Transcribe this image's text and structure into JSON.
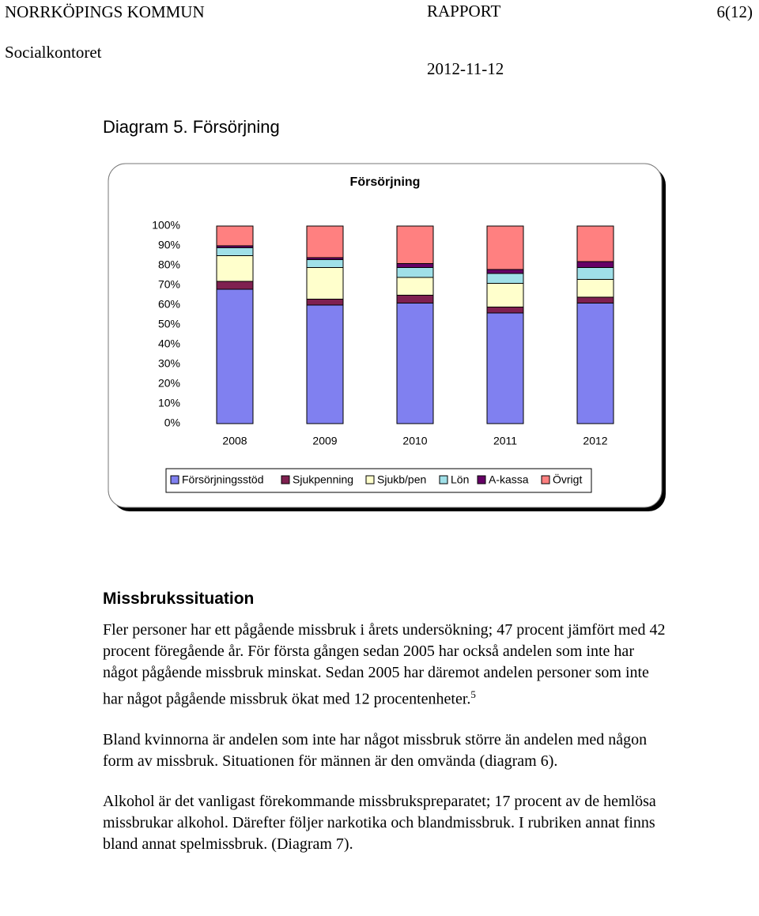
{
  "header": {
    "organization": "NORRKÖPINGS KOMMUN",
    "report": "RAPPORT",
    "page": "6(12)",
    "department": "Socialkontoret",
    "date": "2012-11-12"
  },
  "caption": "Diagram 5. Försörjning",
  "chart_data": {
    "type": "stacked_bar",
    "title": "Försörjning",
    "categories": [
      "2008",
      "2009",
      "2010",
      "2011",
      "2012"
    ],
    "series": [
      {
        "name": "Försörjningsstöd",
        "color": "#8080f0",
        "values": [
          68,
          60,
          61,
          56,
          61
        ]
      },
      {
        "name": "Sjukpenning",
        "color": "#7f2050",
        "values": [
          4,
          3,
          4,
          3,
          3
        ]
      },
      {
        "name": "Sjukb/pen",
        "color": "#ffffcc",
        "values": [
          13,
          16,
          9,
          12,
          9
        ]
      },
      {
        "name": "Lön",
        "color": "#a0e0e8",
        "values": [
          4,
          4,
          5,
          5,
          6
        ]
      },
      {
        "name": "A-kassa",
        "color": "#660066",
        "values": [
          1,
          1,
          2,
          2,
          3
        ]
      },
      {
        "name": "Övrigt",
        "color": "#ff8080",
        "values": [
          10,
          16,
          19,
          22,
          18
        ]
      }
    ],
    "ylim": [
      0,
      100
    ],
    "yticks": [
      {
        "value": 0,
        "label": "0%"
      },
      {
        "value": 10,
        "label": "10%"
      },
      {
        "value": 20,
        "label": "20%"
      },
      {
        "value": 30,
        "label": "30%"
      },
      {
        "value": 40,
        "label": "40%"
      },
      {
        "value": 50,
        "label": "50%"
      },
      {
        "value": 60,
        "label": "60%"
      },
      {
        "value": 70,
        "label": "70%"
      },
      {
        "value": 80,
        "label": "80%"
      },
      {
        "value": 90,
        "label": "90%"
      },
      {
        "value": 100,
        "label": "100%"
      }
    ],
    "legend": "bottom"
  },
  "section": {
    "heading": "Missbrukssituation",
    "paragraphs": [
      "Fler personer har ett pågående missbruk i årets undersökning; 47 procent jämfört med 42 procent föregående år. För första gången sedan 2005 har också andelen som inte har något pågående missbruk minskat. Sedan 2005 har däremot andelen personer som inte har något pågående missbruk ökat med 12 procentenheter.",
      "Bland kvinnorna är andelen som inte har något missbruk större än andelen med någon form av missbruk. Situationen för männen är den omvända (diagram 6).",
      "Alkohol är det vanligast förekommande missbrukspreparatet; 17 procent av de hemlösa missbrukar alkohol. Därefter följer narkotika och blandmissbruk. I rubriken annat finns bland annat spelmissbruk. (Diagram 7)."
    ],
    "footnote_ref": "5"
  }
}
